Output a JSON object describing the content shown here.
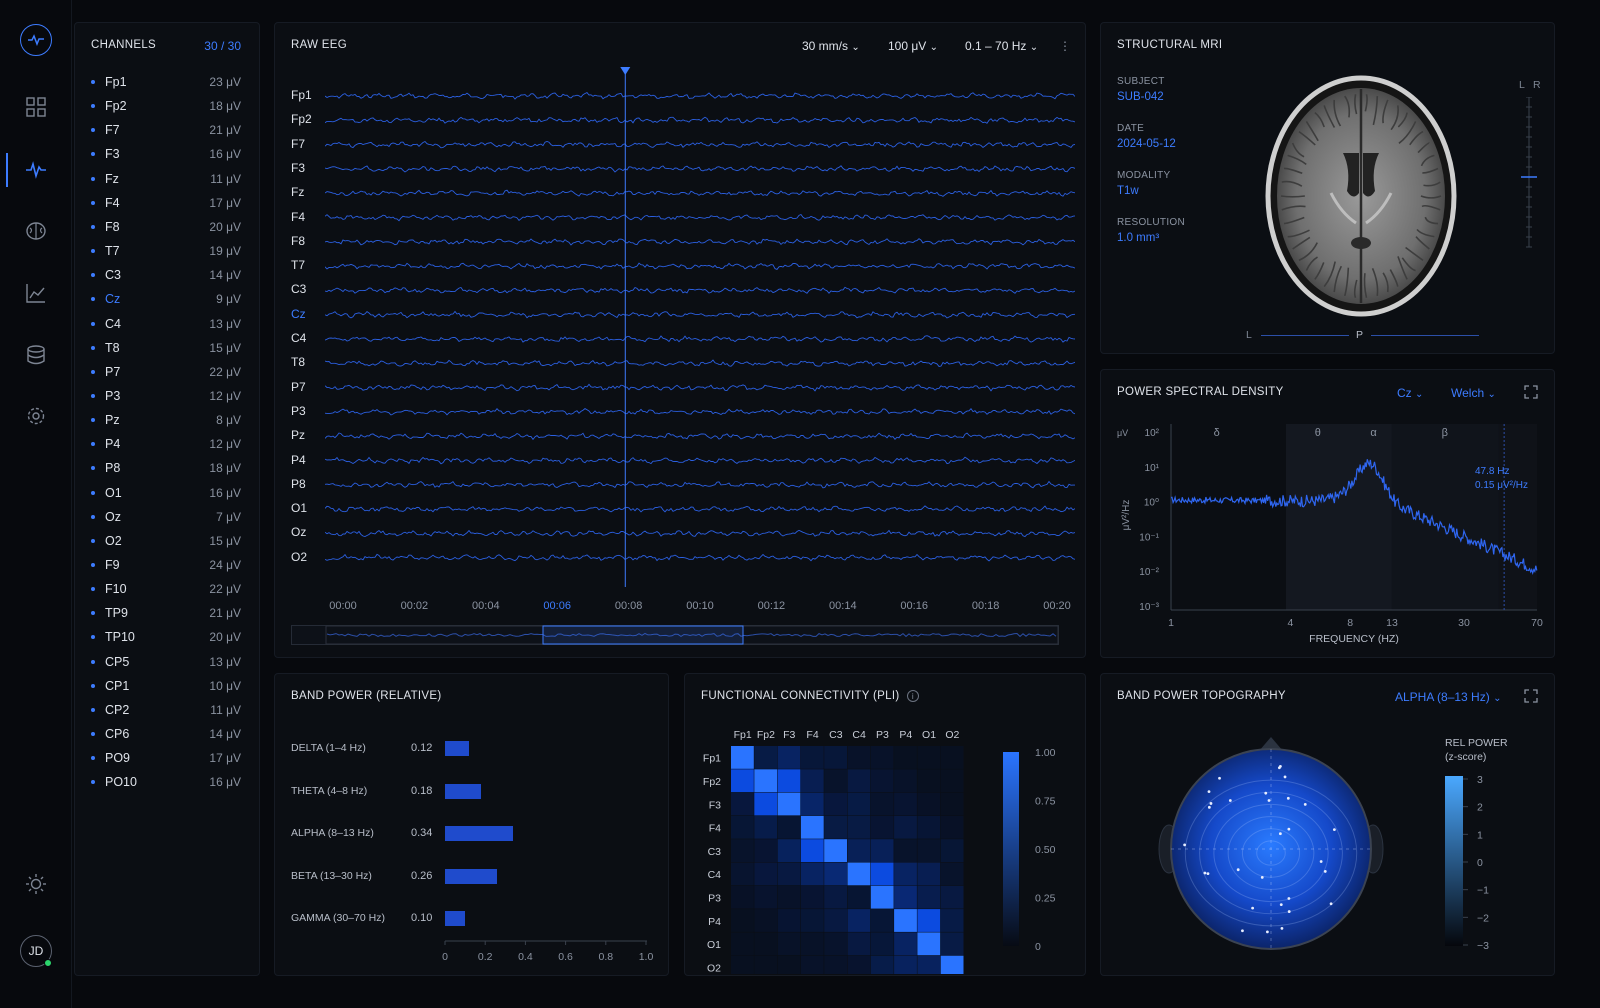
{
  "sidebar": {
    "items": [
      {
        "name": "overview-icon"
      },
      {
        "name": "waveform-icon",
        "active": true
      },
      {
        "name": "brain-icon"
      },
      {
        "name": "chart-icon"
      },
      {
        "name": "database-icon"
      },
      {
        "name": "settings-icon"
      }
    ],
    "avatar_initials": "JD"
  },
  "channels": {
    "title": "CHANNELS",
    "count": "30 / 30",
    "items": [
      {
        "name": "Fp1",
        "value": "23 μV"
      },
      {
        "name": "Fp2",
        "value": "18 μV"
      },
      {
        "name": "F7",
        "value": "21 μV"
      },
      {
        "name": "F3",
        "value": "16 μV"
      },
      {
        "name": "Fz",
        "value": "11 μV"
      },
      {
        "name": "F4",
        "value": "17 μV"
      },
      {
        "name": "F8",
        "value": "20 μV"
      },
      {
        "name": "T7",
        "value": "19 μV"
      },
      {
        "name": "C3",
        "value": "14 μV"
      },
      {
        "name": "Cz",
        "value": "9 μV",
        "active": true
      },
      {
        "name": "C4",
        "value": "13 μV"
      },
      {
        "name": "T8",
        "value": "15 μV"
      },
      {
        "name": "P7",
        "value": "22 μV"
      },
      {
        "name": "P3",
        "value": "12 μV"
      },
      {
        "name": "Pz",
        "value": "8 μV"
      },
      {
        "name": "P4",
        "value": "12 μV"
      },
      {
        "name": "P8",
        "value": "18 μV"
      },
      {
        "name": "O1",
        "value": "16 μV"
      },
      {
        "name": "Oz",
        "value": "7 μV"
      },
      {
        "name": "O2",
        "value": "15 μV"
      },
      {
        "name": "F9",
        "value": "24 μV"
      },
      {
        "name": "F10",
        "value": "22 μV"
      },
      {
        "name": "TP9",
        "value": "21 μV"
      },
      {
        "name": "TP10",
        "value": "20 μV"
      },
      {
        "name": "CP5",
        "value": "13 μV"
      },
      {
        "name": "CP1",
        "value": "10 μV"
      },
      {
        "name": "CP2",
        "value": "11 μV"
      },
      {
        "name": "CP6",
        "value": "14 μV"
      },
      {
        "name": "PO9",
        "value": "17 μV"
      },
      {
        "name": "PO10",
        "value": "16 μV"
      }
    ]
  },
  "eeg": {
    "title": "RAW EEG",
    "speed": "30 mm/s",
    "gain": "100 μV",
    "filter": "0.1 – 70 Hz",
    "channels": [
      "Fp1",
      "Fp2",
      "F7",
      "F3",
      "Fz",
      "F4",
      "F8",
      "T7",
      "C3",
      "Cz",
      "C4",
      "T8",
      "P7",
      "P3",
      "Pz",
      "P4",
      "P8",
      "O1",
      "Oz",
      "O2"
    ],
    "active_channel": "Cz",
    "time_labels": [
      "00:00",
      "00:02",
      "00:04",
      "00:06",
      "00:08",
      "00:10",
      "00:12",
      "00:14",
      "00:16",
      "00:18",
      "00:20"
    ],
    "active_time": "00:06",
    "cursor_time_s": 8.2,
    "window_s": [
      0,
      20
    ]
  },
  "mri": {
    "title": "STRUCTURAL MRI",
    "subject_label": "SUBJECT",
    "subject": "SUB-042",
    "date_label": "DATE",
    "date": "2024-05-12",
    "modality_label": "MODALITY",
    "modality": "T1w",
    "resolution_label": "RESOLUTION",
    "resolution": "1.0 mm³",
    "orient_left": "L",
    "orient_right": "R",
    "orient_bottom_l": "L",
    "orient_bottom_p": "P"
  },
  "psd": {
    "title": "POWER SPECTRAL DENSITY",
    "channel": "Cz",
    "method": "Welch",
    "xlabel": "FREQUENCY (HZ)",
    "ylabel": "μV²/Hz",
    "yunit": "μV",
    "x_ticks": [
      "1",
      "4",
      "8",
      "13",
      "30",
      "70"
    ],
    "y_ticks": [
      "10²",
      "10¹",
      "10⁰",
      "10⁻¹",
      "10⁻²",
      "10⁻³"
    ],
    "bands": [
      "δ",
      "θ",
      "α",
      "β"
    ],
    "cursor_freq": "47.8 Hz",
    "cursor_power": "0.15 μV²/Hz"
  },
  "band_power": {
    "title": "BAND POWER (RELATIVE)",
    "items": [
      {
        "label": "DELTA (1–4 Hz)",
        "value": 0.12,
        "text": "0.12"
      },
      {
        "label": "THETA (4–8 Hz)",
        "value": 0.18,
        "text": "0.18"
      },
      {
        "label": "ALPHA (8–13 Hz)",
        "value": 0.34,
        "text": "0.34"
      },
      {
        "label": "BETA (13–30 Hz)",
        "value": 0.26,
        "text": "0.26"
      },
      {
        "label": "GAMMA (30–70 Hz)",
        "value": 0.1,
        "text": "0.10"
      }
    ],
    "x_ticks": [
      "0",
      "0.2",
      "0.4",
      "0.6",
      "0.8",
      "1.0"
    ]
  },
  "connectivity": {
    "title": "FUNCTIONAL CONNECTIVITY (PLI)",
    "labels": [
      "Fp1",
      "Fp2",
      "F3",
      "F4",
      "C3",
      "C4",
      "P3",
      "P4",
      "O1",
      "O2"
    ],
    "colorbar_ticks": [
      "1.00",
      "0.75",
      "0.50",
      "0.25",
      "0"
    ]
  },
  "topo": {
    "title": "BAND POWER TOPOGRAPHY",
    "band": "ALPHA (8–13 Hz)",
    "legend_title_1": "REL POWER",
    "legend_title_2": "(z-score)",
    "ticks": [
      "3",
      "2",
      "1",
      "0",
      "−1",
      "−2",
      "−3"
    ]
  },
  "colors": {
    "accent": "#3d7cff",
    "bg": "#07090d",
    "panel": "#0b0e13"
  }
}
